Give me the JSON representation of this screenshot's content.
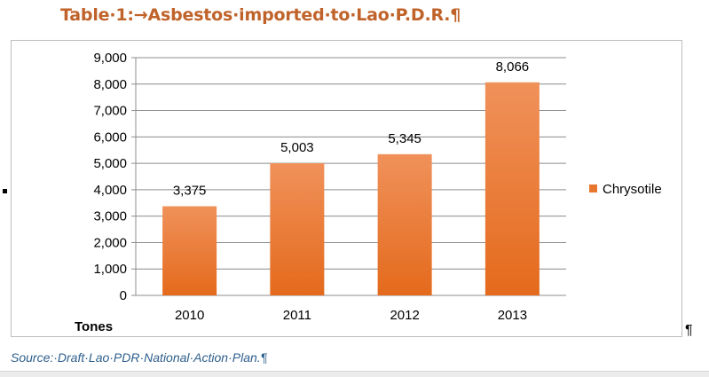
{
  "document": {
    "caption_title": "Table·1:→Asbestos·imported·to·Lao·P.D.R.¶",
    "source_note": "Source:·Draft·Lao·PDR·National·Action·Plan.¶",
    "pilcrow": "¶"
  },
  "colors": {
    "bar_top": "#f0915a",
    "bar_bottom": "#e46a1c",
    "title": "#c0632a",
    "source": "#2e5f8c"
  },
  "chart_data": {
    "type": "bar",
    "categories": [
      "2010",
      "2011",
      "2012",
      "2013"
    ],
    "series": [
      {
        "name": "Chrysotile",
        "values": [
          3375,
          5003,
          5345,
          8066
        ]
      }
    ],
    "data_labels": [
      "3,375",
      "5,003",
      "5,345",
      "8,066"
    ],
    "y_ticks": [
      "0",
      "1,000",
      "2,000",
      "3,000",
      "4,000",
      "5,000",
      "6,000",
      "7,000",
      "8,000",
      "9,000"
    ],
    "ylim": [
      0,
      9000
    ],
    "ylabel": "Tones",
    "xlabel": "",
    "title": "",
    "grid": true,
    "legend_position": "right"
  }
}
